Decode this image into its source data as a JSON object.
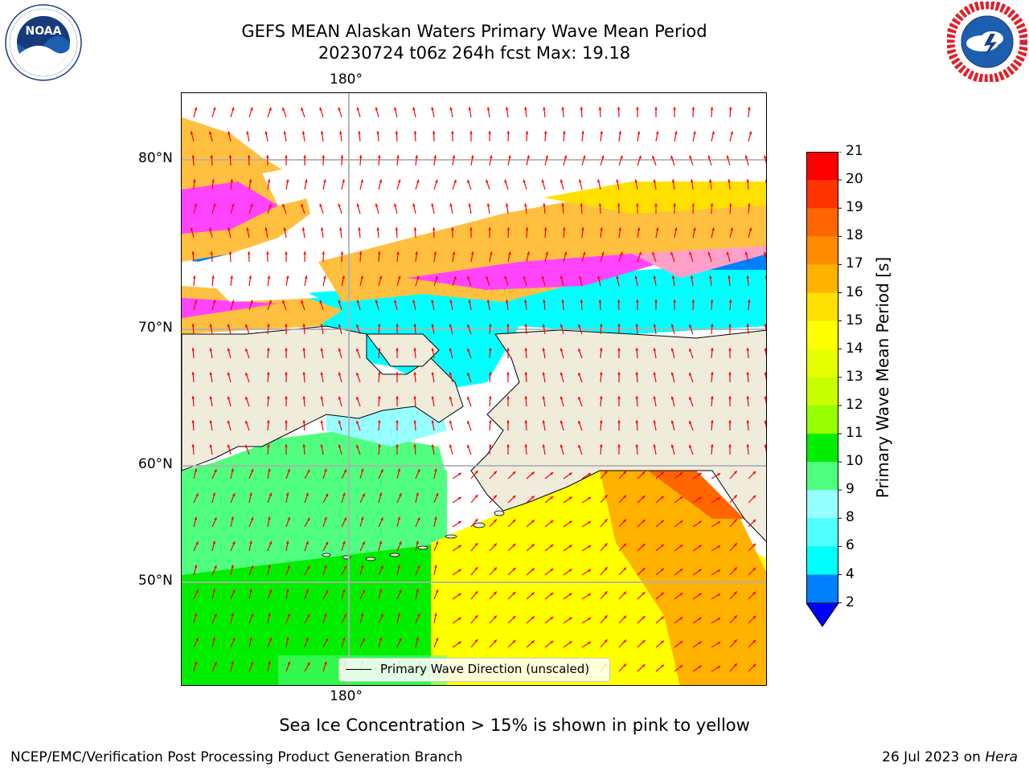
{
  "header": {
    "title_line1": "GEFS MEAN Alaskan Waters Primary Wave Mean Period",
    "title_line2": "20230724 t06z 264h fcst   Max: 19.18"
  },
  "logos": {
    "left": {
      "name": "NOAA",
      "ring_text": "NATIONAL OCEANIC AND ATMOSPHERIC ADMINISTRATION · U.S. DEPARTMENT OF COMMERCE"
    },
    "right": {
      "name": "NATIONAL WEATHER SERVICE"
    }
  },
  "map": {
    "lon_label_top": "180°",
    "lon_label_bottom": "180°",
    "lat_labels": [
      "80°N",
      "70°N",
      "60°N",
      "50°N"
    ],
    "legend_text": "Primary Wave Direction (unscaled)",
    "land_color": "#efecdc",
    "ice_colors": [
      "#ff44ff",
      "#ffa0c8",
      "#ffc040",
      "#ffd820"
    ],
    "arrow_color": "#ff0000"
  },
  "colorbar": {
    "label": "Primary Wave Mean Period [s]",
    "ticks": [
      "21",
      "20",
      "19",
      "18",
      "17",
      "16",
      "15",
      "14",
      "13",
      "12",
      "11",
      "10",
      "9",
      "8",
      "6",
      "4",
      "2"
    ],
    "colors": [
      "#ff0000",
      "#ff3300",
      "#ff6600",
      "#ff8c00",
      "#ffb300",
      "#ffe000",
      "#ffff00",
      "#e6ff00",
      "#c8ff00",
      "#96ff00",
      "#00ee00",
      "#50ff80",
      "#96ffff",
      "#50ffff",
      "#00ffff",
      "#0080ff"
    ],
    "under_color": "#0000ff"
  },
  "note": "Sea Ice Concentration > 15% is shown in pink to yellow",
  "footer": {
    "left": "NCEP/EMC/Verification Post Processing Product Generation Branch",
    "right_prefix": "26 Jul 2023 on ",
    "right_host": "Hera"
  }
}
